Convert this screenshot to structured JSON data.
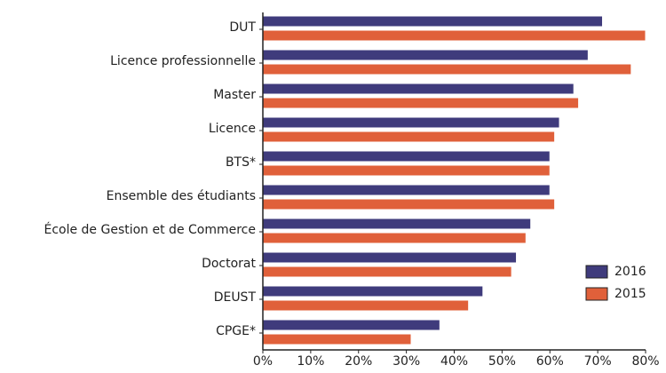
{
  "chart_data": {
    "type": "hbar",
    "categories": [
      "DUT",
      "Licence professionnelle",
      "Master",
      "Licence",
      "BTS*",
      "Ensemble des étudiants",
      "École de Gestion et de Commerce",
      "Doctorat",
      "DEUST",
      "CPGE*"
    ],
    "series": [
      {
        "name": "2016",
        "color": "#3f3b7c",
        "values": [
          71,
          68,
          65,
          62,
          60,
          60,
          56,
          53,
          46,
          37
        ]
      },
      {
        "name": "2015",
        "color": "#e0603a",
        "values": [
          80,
          77,
          66,
          61,
          60,
          61,
          55,
          52,
          43,
          31
        ]
      }
    ],
    "xlim": [
      0,
      80
    ],
    "xticks": [
      {
        "value": 0,
        "label": "0%"
      },
      {
        "value": 10,
        "label": "10%"
      },
      {
        "value": 20,
        "label": "20%"
      },
      {
        "value": 30,
        "label": "30%"
      },
      {
        "value": 40,
        "label": "40%"
      },
      {
        "value": 50,
        "label": "50%"
      },
      {
        "value": 60,
        "label": "60%"
      },
      {
        "value": 70,
        "label": "70%"
      },
      {
        "value": 80,
        "label": "80%"
      }
    ],
    "legend": "bottom-right"
  }
}
